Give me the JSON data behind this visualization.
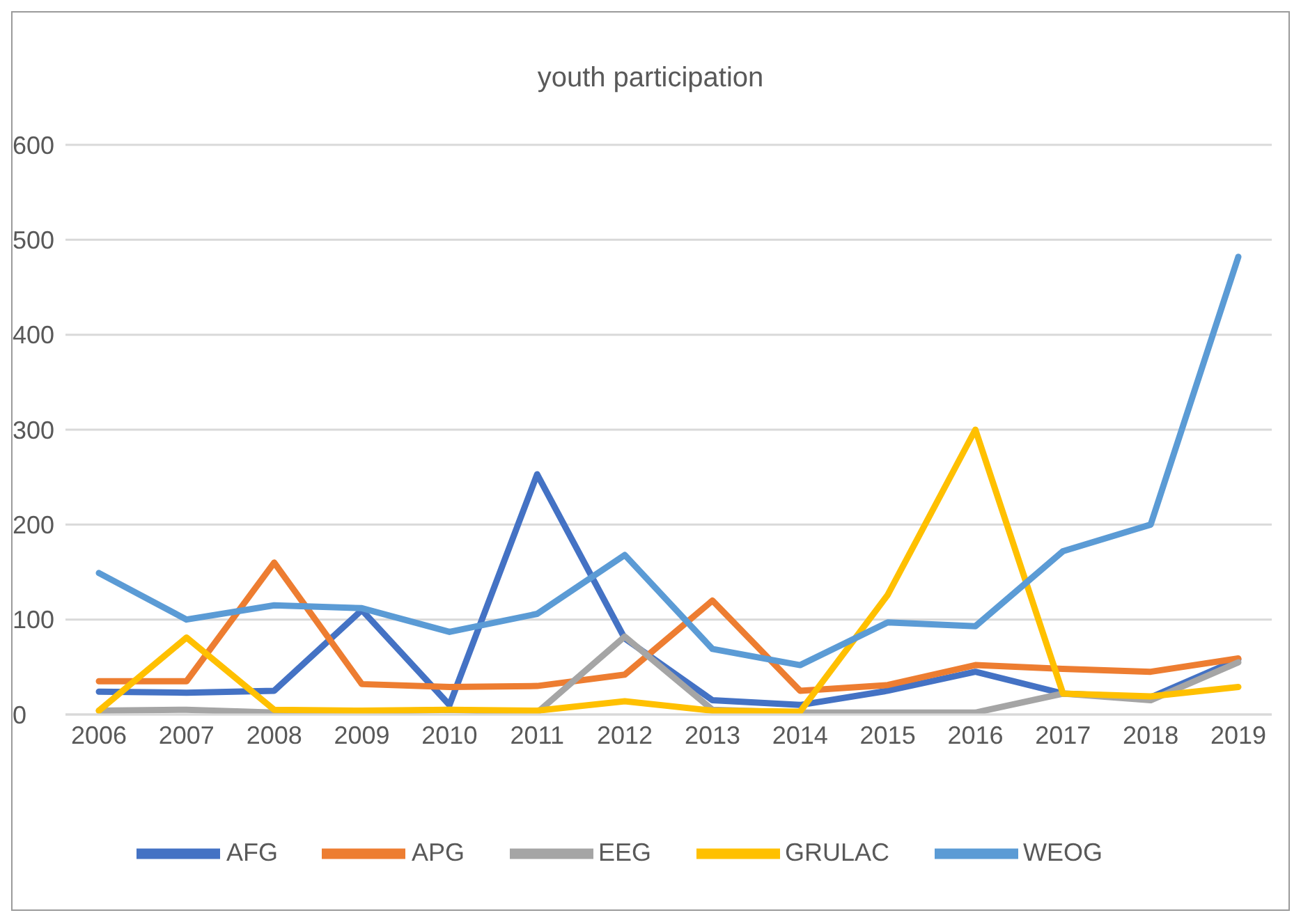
{
  "chart_data": {
    "type": "line",
    "title": "youth participation",
    "categories": [
      "2006",
      "2007",
      "2008",
      "2009",
      "2010",
      "2011",
      "2012",
      "2013",
      "2014",
      "2015",
      "2016",
      "2017",
      "2018",
      "2019"
    ],
    "series": [
      {
        "name": "AFG",
        "color": "#4472c4",
        "values": [
          24,
          23,
          25,
          110,
          10,
          253,
          80,
          15,
          10,
          25,
          45,
          22,
          18,
          58
        ]
      },
      {
        "name": "APG",
        "color": "#ed7d31",
        "values": [
          35,
          35,
          160,
          32,
          29,
          30,
          42,
          120,
          25,
          31,
          52,
          48,
          45,
          59
        ]
      },
      {
        "name": "EEG",
        "color": "#a5a5a5",
        "values": [
          4,
          5,
          2,
          3,
          5,
          2,
          82,
          5,
          2,
          2,
          2,
          22,
          15,
          55
        ]
      },
      {
        "name": "GRULAC",
        "color": "#ffc000",
        "values": [
          4,
          81,
          5,
          4,
          5,
          4,
          14,
          4,
          3,
          126,
          300,
          22,
          19,
          29
        ]
      },
      {
        "name": "WEOG",
        "color": "#5b9bd5",
        "values": [
          149,
          100,
          115,
          112,
          87,
          106,
          168,
          69,
          52,
          97,
          93,
          172,
          200,
          482
        ]
      }
    ],
    "ylim": [
      0,
      600
    ],
    "yticks": [
      0,
      100,
      200,
      300,
      400,
      500,
      600
    ],
    "grid": "y",
    "legend": "bottom",
    "marker": "none",
    "line_style": "solid"
  }
}
